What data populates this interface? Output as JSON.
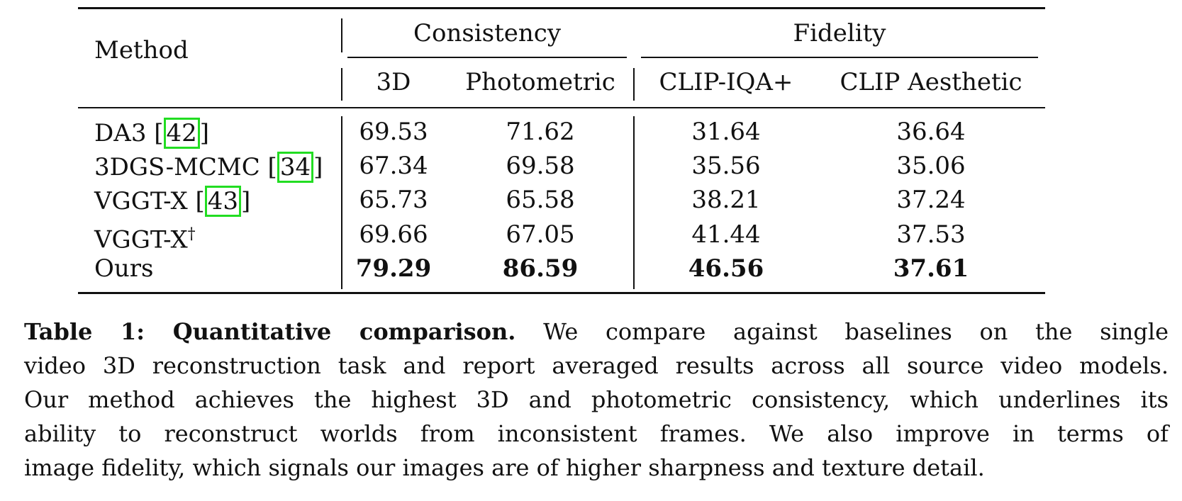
{
  "table": {
    "header": {
      "method": "Method",
      "group_consistency": "Consistency",
      "group_fidelity": "Fidelity",
      "col_3d": "3D",
      "col_photometric": "Photometric",
      "col_clip_iqa": "CLIP-IQA+",
      "col_clip_aesthetic": "CLIP Aesthetic"
    },
    "rows": [
      {
        "method": "DA3 ",
        "cite": "42",
        "dagger": "",
        "v3d": "69.53",
        "photo": "71.62",
        "iqa": "31.64",
        "aes": "36.64"
      },
      {
        "method": "3DGS-MCMC ",
        "cite": "34",
        "dagger": "",
        "v3d": "67.34",
        "photo": "69.58",
        "iqa": "35.56",
        "aes": "35.06"
      },
      {
        "method": "VGGT-X ",
        "cite": "43",
        "dagger": "",
        "v3d": "65.73",
        "photo": "65.58",
        "iqa": "38.21",
        "aes": "37.24"
      },
      {
        "method": "VGGT-X",
        "cite": "",
        "dagger": "†",
        "v3d": "69.66",
        "photo": "67.05",
        "iqa": "41.44",
        "aes": "37.53"
      },
      {
        "method": "Ours",
        "cite": "",
        "dagger": "",
        "v3d": "79.29",
        "photo": "86.59",
        "iqa": "46.56",
        "aes": "37.61"
      }
    ]
  },
  "caption": {
    "label": "Table 1: Quantitative comparison.",
    "line1": "We compare against baselines on the single",
    "line2": "video 3D reconstruction task and report averaged results across all source video models.",
    "line3": "Our method achieves the highest 3D and photometric consistency, which underlines its",
    "line4": "ability to reconstruct worlds from inconsistent frames. We also improve in terms of",
    "line5": "image fidelity, which signals our images are of higher sharpness and texture detail."
  },
  "colors": {
    "citation_box": "#22dd22"
  }
}
